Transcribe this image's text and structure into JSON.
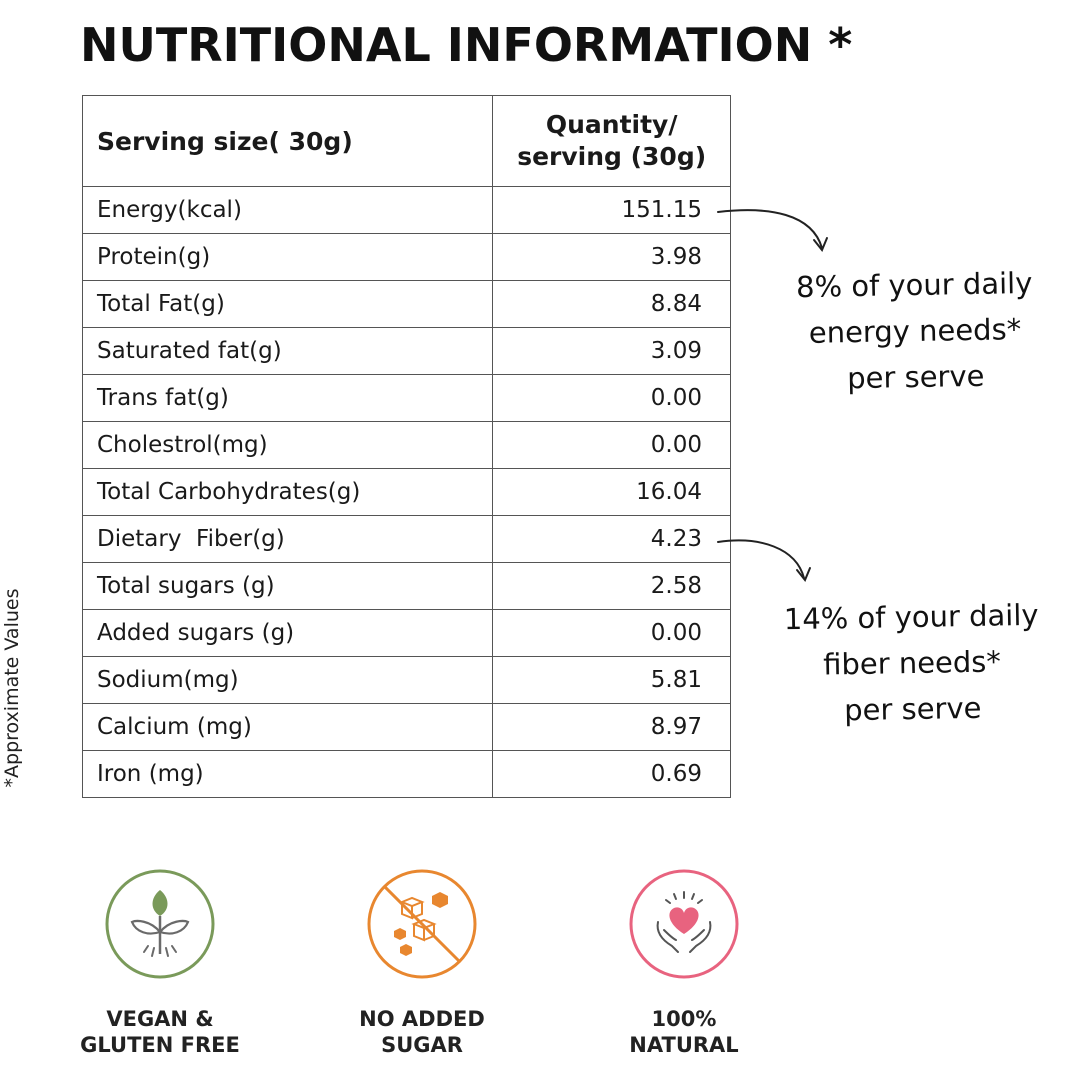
{
  "title": "NUTRITIONAL INFORMATION *",
  "table": {
    "header": {
      "col1": "Serving size( 30g)",
      "col2_line1": "Quantity/",
      "col2_line2": "serving (30g)"
    },
    "rows": [
      {
        "label": "Energy(kcal)",
        "value": "151.15"
      },
      {
        "label": "Protein(g)",
        "value": "3.98"
      },
      {
        "label": "Total Fat(g)",
        "value": "8.84"
      },
      {
        "label": "Saturated fat(g)",
        "value": "3.09"
      },
      {
        "label": "Trans fat(g)",
        "value": "0.00"
      },
      {
        "label": "Cholestrol(mg)",
        "value": "0.00"
      },
      {
        "label": "Total Carbohydrates(g)",
        "value": "16.04"
      },
      {
        "label": "Dietary  Fiber(g)",
        "value": "4.23"
      },
      {
        "label": "Total sugars (g)",
        "value": "2.58"
      },
      {
        "label": "Added sugars (g)",
        "value": "0.00"
      },
      {
        "label": "Sodium(mg)",
        "value": "5.81"
      },
      {
        "label": "Calcium (mg)",
        "value": "8.97"
      },
      {
        "label": "Iron (mg)",
        "value": "0.69"
      }
    ]
  },
  "side_note": "*Approximate Values",
  "callouts": {
    "energy": {
      "line1": "8% of your daily",
      "line2": "energy needs*",
      "line3": "per serve"
    },
    "fiber": {
      "line1": "14% of your daily",
      "line2": "fiber needs*",
      "line3": "per serve"
    }
  },
  "badges": [
    {
      "icon": "vegan-leaf-icon",
      "line1": "VEGAN &",
      "line2": "GLUTEN FREE",
      "color": "#7a9a5a"
    },
    {
      "icon": "no-sugar-cubes-icon",
      "line1": "NO ADDED",
      "line2": "SUGAR",
      "color": "#e8872f"
    },
    {
      "icon": "heart-hands-icon",
      "line1": "100%",
      "line2": "NATURAL",
      "color": "#e8637f"
    }
  ]
}
